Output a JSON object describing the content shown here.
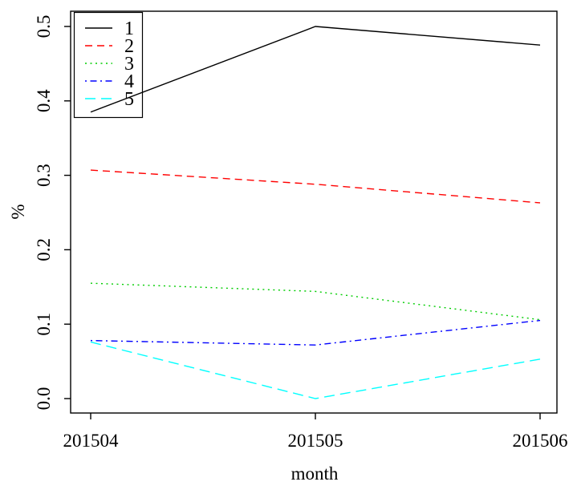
{
  "figure": {
    "background": "#ffffff",
    "axis_color": "#000000"
  },
  "chart_data": {
    "type": "line",
    "title": "",
    "xlabel": "month",
    "ylabel": "%",
    "categories": [
      "201504",
      "201505",
      "201506"
    ],
    "yticks": [
      "0.0",
      "0.1",
      "0.2",
      "0.3",
      "0.4",
      "0.5"
    ],
    "ylim": [
      0.0,
      0.5
    ],
    "grid": false,
    "legend_position": "topleft",
    "legend_transparent": true,
    "series": [
      {
        "name": "1",
        "color": "#000000",
        "linetype": "solid",
        "values": [
          0.385,
          0.5,
          0.475
        ]
      },
      {
        "name": "2",
        "color": "#ff0000",
        "linetype": "dashed",
        "values": [
          0.307,
          0.288,
          0.263
        ]
      },
      {
        "name": "3",
        "color": "#00cd00",
        "linetype": "dotted",
        "values": [
          0.155,
          0.144,
          0.106
        ]
      },
      {
        "name": "4",
        "color": "#0000ff",
        "linetype": "dotdash",
        "values": [
          0.078,
          0.072,
          0.105
        ]
      },
      {
        "name": "5",
        "color": "#00ffff",
        "linetype": "longdash",
        "values": [
          0.076,
          0.0,
          0.053
        ]
      }
    ]
  }
}
